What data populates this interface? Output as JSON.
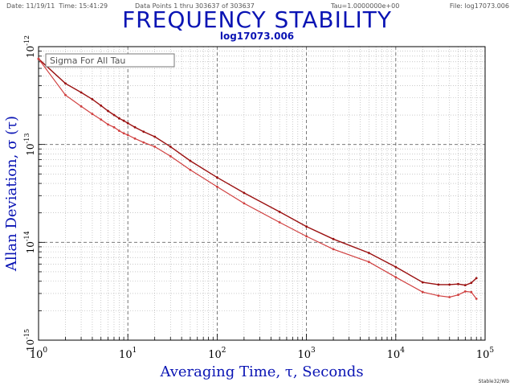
{
  "header": {
    "date": "Date: 11/19/11",
    "time": "Time: 15:41:29",
    "data_points": "Data Points 1 thru 303637 of 303637",
    "tau": "Tau=1.0000000e+00",
    "file": "File: log17073.006"
  },
  "footer_credit": "Stable32/Wb",
  "colors": {
    "title": "#0a14b4",
    "series_upper": "#9a1010",
    "series_lower": "#d04040",
    "grid": "#aaaaaa"
  },
  "chart_data": {
    "type": "line",
    "title": "FREQUENCY STABILITY",
    "subtitle": "log17073.006",
    "xlabel": "Averaging Time, τ, Seconds",
    "ylabel": "Allan Deviation, σ (τ)",
    "legend": "Sigma For All Tau",
    "legend_placement": "top-left",
    "x_scale": "log",
    "y_scale": "log",
    "xlim": [
      1,
      100000
    ],
    "ylim": [
      1e-15,
      1e-12
    ],
    "grid": true,
    "x_tick_labels": [
      {
        "base": "10",
        "exp": "0",
        "value": 1
      },
      {
        "base": "10",
        "exp": "1",
        "value": 10
      },
      {
        "base": "10",
        "exp": "2",
        "value": 100
      },
      {
        "base": "10",
        "exp": "3",
        "value": 1000
      },
      {
        "base": "10",
        "exp": "4",
        "value": 10000
      },
      {
        "base": "10",
        "exp": "5",
        "value": 100000
      }
    ],
    "y_tick_labels": [
      {
        "base": "10",
        "exp": "-12",
        "value": 1e-12
      },
      {
        "base": "10",
        "exp": "-13",
        "value": 1e-13
      },
      {
        "base": "10",
        "exp": "-14",
        "value": 1e-14
      },
      {
        "base": "10",
        "exp": "-15",
        "value": 1e-15
      }
    ],
    "series": [
      {
        "x": [
          1,
          2,
          3,
          4,
          5,
          6,
          7,
          8,
          9,
          10,
          12,
          15,
          20,
          30,
          50,
          100,
          200,
          500,
          1000,
          2000,
          5000,
          10000,
          20000,
          30000,
          40000,
          50000,
          60000,
          70000,
          80000
        ],
        "y": [
          7.5e-13,
          4.2e-13,
          3.4e-13,
          2.9e-13,
          2.5e-13,
          2.2e-13,
          2e-13,
          1.85e-13,
          1.75e-13,
          1.65e-13,
          1.5e-13,
          1.35e-13,
          1.2e-13,
          9.5e-14,
          6.8e-14,
          4.6e-14,
          3.2e-14,
          2.05e-14,
          1.45e-14,
          1.08e-14,
          7.8e-15,
          5.6e-15,
          3.9e-15,
          3.7e-15,
          3.7e-15,
          3.75e-15,
          3.65e-15,
          3.85e-15,
          4.3e-15
        ]
      },
      {
        "x": [
          1,
          2,
          3,
          4,
          5,
          6,
          7,
          8,
          9,
          10,
          12,
          15,
          20,
          30,
          50,
          100,
          200,
          500,
          1000,
          2000,
          5000,
          10000,
          20000,
          30000,
          40000,
          50000,
          60000,
          70000,
          80000
        ],
        "y": [
          7.5e-13,
          3.2e-13,
          2.45e-13,
          2.05e-13,
          1.8e-13,
          1.6e-13,
          1.5e-13,
          1.38e-13,
          1.3e-13,
          1.25e-13,
          1.15e-13,
          1.05e-13,
          9.5e-14,
          7.6e-14,
          5.5e-14,
          3.7e-14,
          2.5e-14,
          1.6e-14,
          1.15e-14,
          8.5e-15,
          6.3e-15,
          4.4e-15,
          3.1e-15,
          2.85e-15,
          2.75e-15,
          2.9e-15,
          3.15e-15,
          3.1e-15,
          2.65e-15
        ]
      }
    ]
  }
}
